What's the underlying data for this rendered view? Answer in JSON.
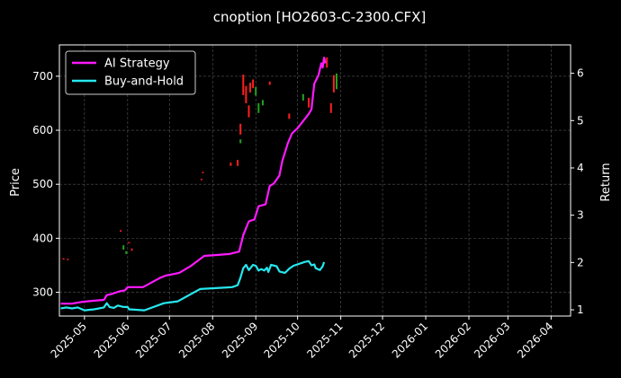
{
  "chart_data": {
    "type": "line",
    "title": "cnoption [HO2603-C-2300.CFX]",
    "ylabel_left": "Price",
    "ylabel_right": "Return",
    "ylim_left": [
      256,
      758
    ],
    "ylim_right": [
      0.868,
      6.6
    ],
    "xlim": [
      "2025-04-13",
      "2026-04-15"
    ],
    "grid": true,
    "legend_position": "top-left",
    "x_ticks": [
      "2025-05",
      "2025-06",
      "2025-07",
      "2025-08",
      "2025-09",
      "2025-10",
      "2025-11",
      "2025-12",
      "2026-01",
      "2026-02",
      "2026-03",
      "2026-04"
    ],
    "y_ticks_left": [
      300,
      400,
      500,
      600,
      700
    ],
    "y_ticks_right": [
      1,
      2,
      3,
      4,
      5,
      6
    ],
    "series": [
      {
        "name": "AI Strategy",
        "color": "#ff1aff",
        "axis": "right",
        "points": [
          [
            "2025-04-14",
            1.13
          ],
          [
            "2025-04-22",
            1.13
          ],
          [
            "2025-04-30",
            1.17
          ],
          [
            "2025-05-07",
            1.19
          ],
          [
            "2025-05-15",
            1.21
          ],
          [
            "2025-05-17",
            1.31
          ],
          [
            "2025-05-20",
            1.33
          ],
          [
            "2025-05-26",
            1.39
          ],
          [
            "2025-05-30",
            1.41
          ],
          [
            "2025-06-01",
            1.48
          ],
          [
            "2025-06-12",
            1.48
          ],
          [
            "2025-06-24",
            1.67
          ],
          [
            "2025-06-28",
            1.72
          ],
          [
            "2025-07-08",
            1.78
          ],
          [
            "2025-07-16",
            1.92
          ],
          [
            "2025-07-26",
            2.14
          ],
          [
            "2025-08-05",
            2.16
          ],
          [
            "2025-08-13",
            2.18
          ],
          [
            "2025-08-20",
            2.23
          ],
          [
            "2025-08-23",
            2.58
          ],
          [
            "2025-08-27",
            2.87
          ],
          [
            "2025-08-31",
            2.91
          ],
          [
            "2025-09-03",
            3.19
          ],
          [
            "2025-09-08",
            3.23
          ],
          [
            "2025-09-11",
            3.62
          ],
          [
            "2025-09-14",
            3.67
          ],
          [
            "2025-09-18",
            3.84
          ],
          [
            "2025-09-20",
            4.14
          ],
          [
            "2025-09-24",
            4.52
          ],
          [
            "2025-09-27",
            4.73
          ],
          [
            "2025-10-01",
            4.84
          ],
          [
            "2025-10-09",
            5.14
          ],
          [
            "2025-10-11",
            5.24
          ],
          [
            "2025-10-13",
            5.78
          ],
          [
            "2025-10-16",
            5.96
          ],
          [
            "2025-10-18",
            6.21
          ],
          [
            "2025-10-19",
            6.12
          ],
          [
            "2025-10-20",
            6.33
          ],
          [
            "2025-10-21",
            6.21
          ]
        ]
      },
      {
        "name": "Buy-and-Hold",
        "color": "#26e8ef",
        "axis": "right",
        "points": [
          [
            "2025-04-14",
            1.03
          ],
          [
            "2025-04-18",
            1.05
          ],
          [
            "2025-04-22",
            1.03
          ],
          [
            "2025-04-26",
            1.05
          ],
          [
            "2025-05-01",
            0.99
          ],
          [
            "2025-05-08",
            1.01
          ],
          [
            "2025-05-15",
            1.05
          ],
          [
            "2025-05-17",
            1.14
          ],
          [
            "2025-05-19",
            1.06
          ],
          [
            "2025-05-22",
            1.04
          ],
          [
            "2025-05-25",
            1.09
          ],
          [
            "2025-05-29",
            1.06
          ],
          [
            "2025-06-01",
            1.06
          ],
          [
            "2025-06-02",
            1.01
          ],
          [
            "2025-06-13",
            0.99
          ],
          [
            "2025-06-27",
            1.14
          ],
          [
            "2025-07-07",
            1.18
          ],
          [
            "2025-07-23",
            1.44
          ],
          [
            "2025-08-15",
            1.48
          ],
          [
            "2025-08-19",
            1.52
          ],
          [
            "2025-08-21",
            1.68
          ],
          [
            "2025-08-23",
            1.88
          ],
          [
            "2025-08-25",
            1.95
          ],
          [
            "2025-08-27",
            1.84
          ],
          [
            "2025-08-30",
            1.95
          ],
          [
            "2025-09-01",
            1.93
          ],
          [
            "2025-09-03",
            1.83
          ],
          [
            "2025-09-05",
            1.86
          ],
          [
            "2025-09-07",
            1.83
          ],
          [
            "2025-09-09",
            1.89
          ],
          [
            "2025-09-10",
            1.8
          ],
          [
            "2025-09-12",
            1.95
          ],
          [
            "2025-09-16",
            1.92
          ],
          [
            "2025-09-18",
            1.81
          ],
          [
            "2025-09-22",
            1.78
          ],
          [
            "2025-09-25",
            1.87
          ],
          [
            "2025-09-28",
            1.93
          ],
          [
            "2025-10-06",
            2.01
          ],
          [
            "2025-10-09",
            2.03
          ],
          [
            "2025-10-11",
            1.94
          ],
          [
            "2025-10-13",
            1.96
          ],
          [
            "2025-10-14",
            1.88
          ],
          [
            "2025-10-17",
            1.84
          ],
          [
            "2025-10-19",
            1.92
          ],
          [
            "2025-10-20",
            2.01
          ]
        ]
      }
    ],
    "candles": {
      "axis": "left",
      "up_color": "#1fa31f",
      "down_color": "#ff1f1f",
      "bars": [
        [
          "2025-04-16",
          363,
          362,
          "down"
        ],
        [
          "2025-04-19",
          362,
          360,
          "down"
        ],
        [
          "2025-05-27",
          415,
          412,
          "down"
        ],
        [
          "2025-05-29",
          387,
          379,
          "up"
        ],
        [
          "2025-05-31",
          376,
          371,
          "up"
        ],
        [
          "2025-06-02",
          393,
          391,
          "down"
        ],
        [
          "2025-06-04",
          381,
          377,
          "down"
        ],
        [
          "2025-07-25",
          523,
          521,
          "down"
        ],
        [
          "2025-07-24",
          510,
          508,
          "down"
        ],
        [
          "2025-08-14",
          540,
          534,
          "down"
        ],
        [
          "2025-08-19",
          545,
          534,
          "down"
        ],
        [
          "2025-08-21",
          612,
          592,
          "down"
        ],
        [
          "2025-08-21",
          583,
          576,
          "up"
        ],
        [
          "2025-08-23",
          703,
          665,
          "down"
        ],
        [
          "2025-08-25",
          682,
          650,
          "down"
        ],
        [
          "2025-08-27",
          646,
          624,
          "down"
        ],
        [
          "2025-08-28",
          688,
          670,
          "down"
        ],
        [
          "2025-08-30",
          694,
          678,
          "down"
        ],
        [
          "2025-09-01",
          680,
          664,
          "up"
        ],
        [
          "2025-09-03",
          650,
          632,
          "up"
        ],
        [
          "2025-09-06",
          656,
          646,
          "up"
        ],
        [
          "2025-09-11",
          690,
          684,
          "down"
        ],
        [
          "2025-09-25",
          631,
          621,
          "down"
        ],
        [
          "2025-10-05",
          667,
          655,
          "up"
        ],
        [
          "2025-10-09",
          660,
          642,
          "down"
        ],
        [
          "2025-10-22",
          735,
          716,
          "down"
        ],
        [
          "2025-10-25",
          650,
          632,
          "down"
        ],
        [
          "2025-10-27",
          702,
          670,
          "down"
        ],
        [
          "2025-10-29",
          705,
          676,
          "up"
        ]
      ]
    }
  }
}
